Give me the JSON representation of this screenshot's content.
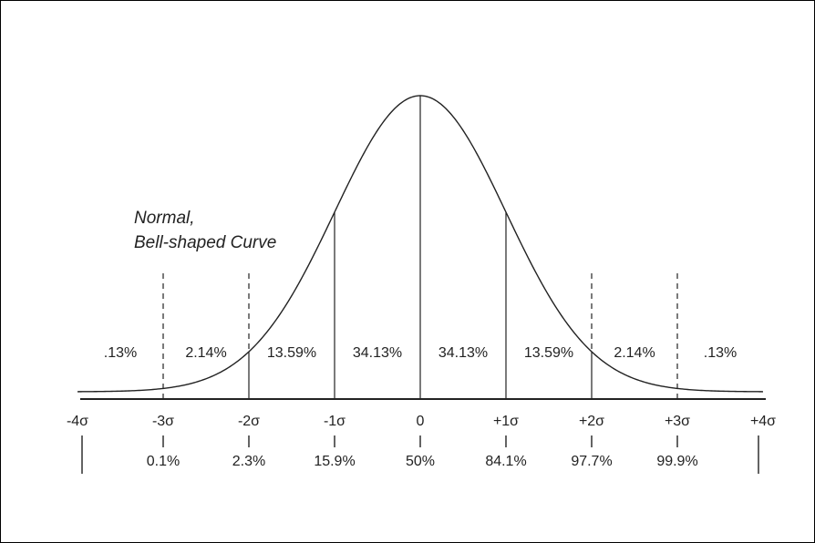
{
  "chart_data": {
    "type": "area",
    "title_lines": [
      "Normal,",
      "Bell-shaped Curve"
    ],
    "x": [
      -4,
      -3,
      -2,
      -1,
      0,
      1,
      2,
      3,
      4
    ],
    "x_tick_labels": [
      "-4σ",
      "-3σ",
      "-2σ",
      "-1σ",
      "0",
      "+1σ",
      "+2σ",
      "+3σ",
      "+4σ"
    ],
    "solid_dividers_at": [
      -2,
      -1,
      0,
      1,
      2
    ],
    "dashed_dividers_at": [
      -3,
      -2,
      2,
      3
    ],
    "band_labels": [
      {
        "x": -3.5,
        "text": ".13%"
      },
      {
        "x": -2.5,
        "text": "2.14%"
      },
      {
        "x": -1.5,
        "text": "13.59%"
      },
      {
        "x": -0.5,
        "text": "34.13%"
      },
      {
        "x": 0.5,
        "text": "34.13%"
      },
      {
        "x": 1.5,
        "text": "13.59%"
      },
      {
        "x": 2.5,
        "text": "2.14%"
      },
      {
        "x": 3.5,
        "text": ".13%"
      }
    ],
    "cumulative_percentages": [
      {
        "x": -3,
        "text": "0.1%"
      },
      {
        "x": -2,
        "text": "2.3%"
      },
      {
        "x": -1,
        "text": "15.9%"
      },
      {
        "x": 0,
        "text": "50%"
      },
      {
        "x": 1,
        "text": "84.1%"
      },
      {
        "x": 2,
        "text": "97.7%"
      },
      {
        "x": 3,
        "text": "99.9%"
      }
    ],
    "xlim": [
      -4,
      4
    ],
    "grid": false
  }
}
